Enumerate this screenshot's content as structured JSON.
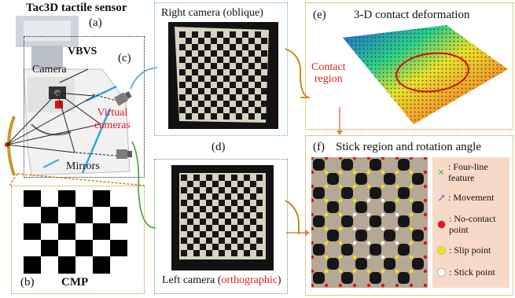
{
  "colors": {
    "orange_box": "#c98a1a",
    "blue_box": "#5aa7d8",
    "green_box": "#5aa64a",
    "black_box": "#222222",
    "red_text": "#e02020",
    "peach_bg": "#f8d9c8"
  },
  "labels": {
    "title": "Tac3D tactile sensor",
    "a": "(a)",
    "b": "(b)",
    "c": "(c)",
    "d": "(d)",
    "e": "(e)",
    "f": "(f)",
    "vbvs": "VBVS",
    "camera": "Camera",
    "virtual_cameras": "Virtual\ncameras",
    "mirrors": "Mirrors",
    "cmp": "CMP",
    "right_camera": "Right camera (oblique)",
    "left_camera_prefix": "Left camera (",
    "left_camera_highlight": "orthographic",
    "left_camera_suffix": ")",
    "deformation_title": "3-D contact deformation",
    "contact_region": "Contact\nregion",
    "stick_title": "Stick region and rotation angle"
  },
  "legend": [
    {
      "icon": "x-mark-icon",
      "color": "#2ecc40",
      "label": "Four-line\nfeature"
    },
    {
      "icon": "arrow-icon",
      "color": "#3b5bdb",
      "label": "Movement"
    },
    {
      "icon": "dot-icon",
      "color": "#e81010",
      "label": "No-contact\npoint"
    },
    {
      "icon": "dot-icon",
      "color": "#f5e600",
      "label": "Slip point"
    },
    {
      "icon": "dot-icon",
      "color": "#ffffff",
      "label": "Stick point"
    }
  ]
}
